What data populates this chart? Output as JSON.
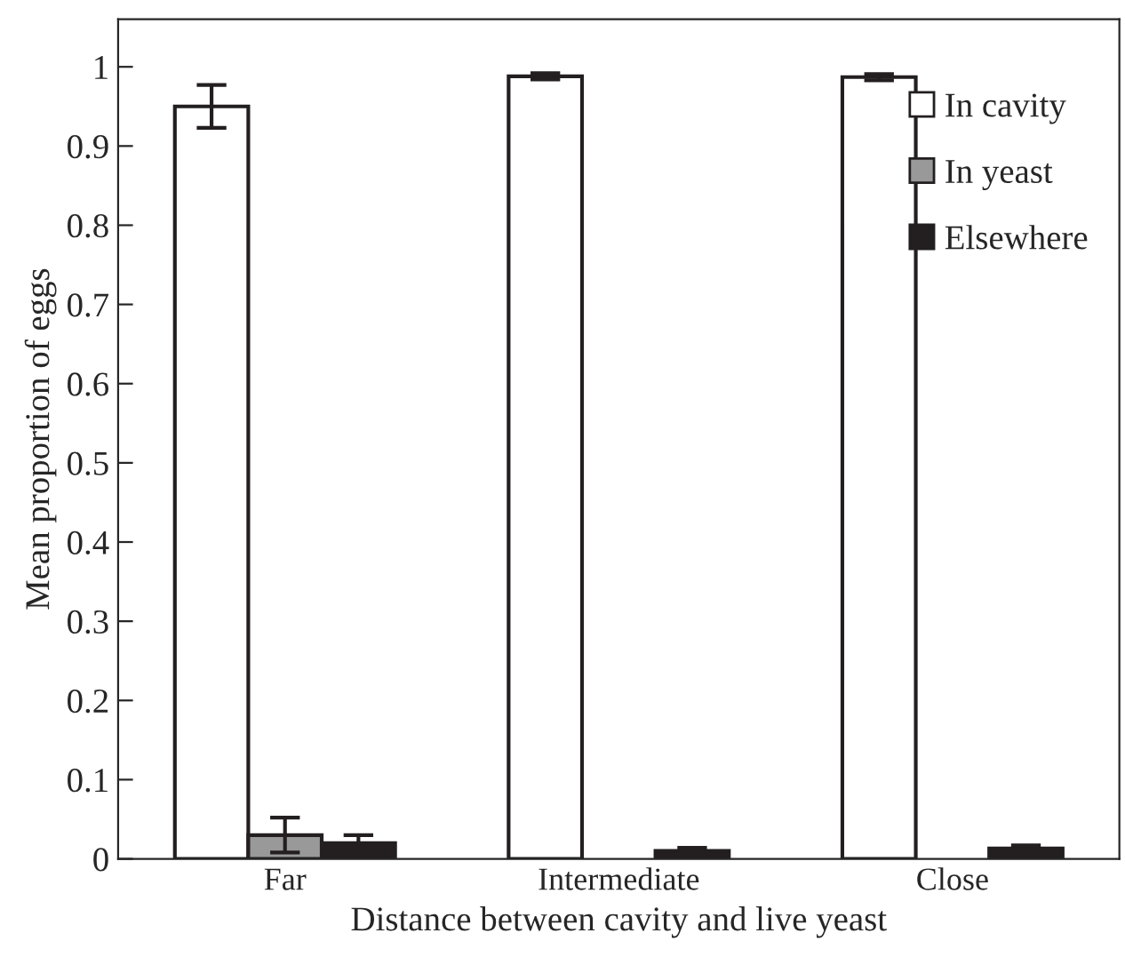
{
  "chart_data": {
    "type": "bar",
    "xlabel": "Distance between cavity and live yeast",
    "ylabel": "Mean proportion of eggs",
    "categories": [
      "Far",
      "Intermediate",
      "Close"
    ],
    "series": [
      {
        "name": "In cavity",
        "color": "#ffffff",
        "values": [
          0.95,
          0.988,
          0.987
        ],
        "errors": [
          0.027,
          0.004,
          0.004
        ]
      },
      {
        "name": "In yeast",
        "color": "#999999",
        "values": [
          0.03,
          null,
          null
        ],
        "errors": [
          0.022,
          null,
          null
        ]
      },
      {
        "name": "Elsewhere",
        "color": "#231f20",
        "values": [
          0.02,
          0.01,
          0.013
        ],
        "errors": [
          0.01,
          0.004,
          0.004
        ]
      }
    ],
    "ylim": [
      0,
      1.06
    ],
    "yticks": [
      0,
      0.1,
      0.2,
      0.3,
      0.4,
      0.5,
      0.6,
      0.7,
      0.8,
      0.9,
      1
    ],
    "grid": false,
    "legend": "top right"
  }
}
